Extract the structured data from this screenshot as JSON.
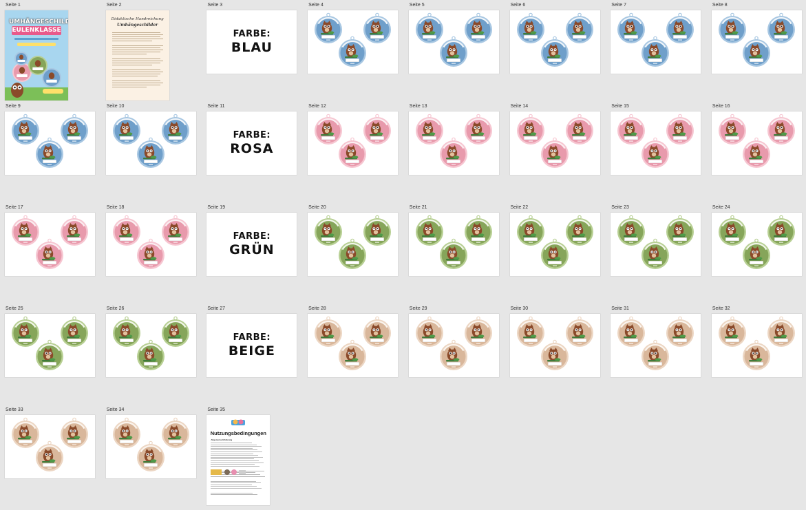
{
  "colors": {
    "blue": {
      "fill": "#6f9fca",
      "rim": "#a8c7e2",
      "band": "#f2f6fa"
    },
    "pink": {
      "fill": "#e89aac",
      "rim": "#f6c6d1",
      "band": "#fbeff2"
    },
    "green": {
      "fill": "#86a55a",
      "rim": "#b7cf93",
      "band": "#f3f7ec"
    },
    "beige": {
      "fill": "#d9b79b",
      "rim": "#ecd6c3",
      "band": "#fbf5ef"
    }
  },
  "pages": [
    {
      "label": "Seite 1",
      "kind": "cover"
    },
    {
      "label": "Seite 2",
      "kind": "instructions"
    },
    {
      "label": "Seite 3",
      "kind": "divider",
      "divider_label": "FARBE:",
      "color_name": "BLAU"
    },
    {
      "label": "Seite 4",
      "kind": "tags",
      "color": "blue"
    },
    {
      "label": "Seite 5",
      "kind": "tags",
      "color": "blue"
    },
    {
      "label": "Seite 6",
      "kind": "tags",
      "color": "blue"
    },
    {
      "label": "Seite 7",
      "kind": "tags",
      "color": "blue"
    },
    {
      "label": "Seite 8",
      "kind": "tags",
      "color": "blue"
    },
    {
      "label": "Seite 9",
      "kind": "tags",
      "color": "blue"
    },
    {
      "label": "Seite 10",
      "kind": "tags",
      "color": "blue"
    },
    {
      "label": "Seite 11",
      "kind": "divider",
      "divider_label": "FARBE:",
      "color_name": "ROSA"
    },
    {
      "label": "Seite 12",
      "kind": "tags",
      "color": "pink"
    },
    {
      "label": "Seite 13",
      "kind": "tags",
      "color": "pink"
    },
    {
      "label": "Seite 14",
      "kind": "tags",
      "color": "pink"
    },
    {
      "label": "Seite 15",
      "kind": "tags",
      "color": "pink"
    },
    {
      "label": "Seite 16",
      "kind": "tags",
      "color": "pink"
    },
    {
      "label": "Seite 17",
      "kind": "tags",
      "color": "pink"
    },
    {
      "label": "Seite 18",
      "kind": "tags",
      "color": "pink"
    },
    {
      "label": "Seite 19",
      "kind": "divider",
      "divider_label": "FARBE:",
      "color_name": "GRÜN"
    },
    {
      "label": "Seite 20",
      "kind": "tags",
      "color": "green"
    },
    {
      "label": "Seite 21",
      "kind": "tags",
      "color": "green"
    },
    {
      "label": "Seite 22",
      "kind": "tags",
      "color": "green"
    },
    {
      "label": "Seite 23",
      "kind": "tags",
      "color": "green"
    },
    {
      "label": "Seite 24",
      "kind": "tags",
      "color": "green"
    },
    {
      "label": "Seite 25",
      "kind": "tags",
      "color": "green"
    },
    {
      "label": "Seite 26",
      "kind": "tags",
      "color": "green"
    },
    {
      "label": "Seite 27",
      "kind": "divider",
      "divider_label": "FARBE:",
      "color_name": "BEIGE"
    },
    {
      "label": "Seite 28",
      "kind": "tags",
      "color": "beige"
    },
    {
      "label": "Seite 29",
      "kind": "tags",
      "color": "beige"
    },
    {
      "label": "Seite 30",
      "kind": "tags",
      "color": "beige"
    },
    {
      "label": "Seite 31",
      "kind": "tags",
      "color": "beige"
    },
    {
      "label": "Seite 32",
      "kind": "tags",
      "color": "beige"
    },
    {
      "label": "Seite 33",
      "kind": "tags",
      "color": "beige"
    },
    {
      "label": "Seite 34",
      "kind": "tags",
      "color": "beige"
    },
    {
      "label": "Seite 35",
      "kind": "terms"
    }
  ],
  "cover": {
    "title_line1": "UMHÄNGESCHILDER",
    "title_line2": "EULENKLASSE"
  },
  "instructions": {
    "heading": "Didaktische Handreichung",
    "title": "Umhängeschilder"
  },
  "terms": {
    "title": "Nutzungsbedingungen",
    "subtitle": "Allgemeine Erklärung"
  }
}
